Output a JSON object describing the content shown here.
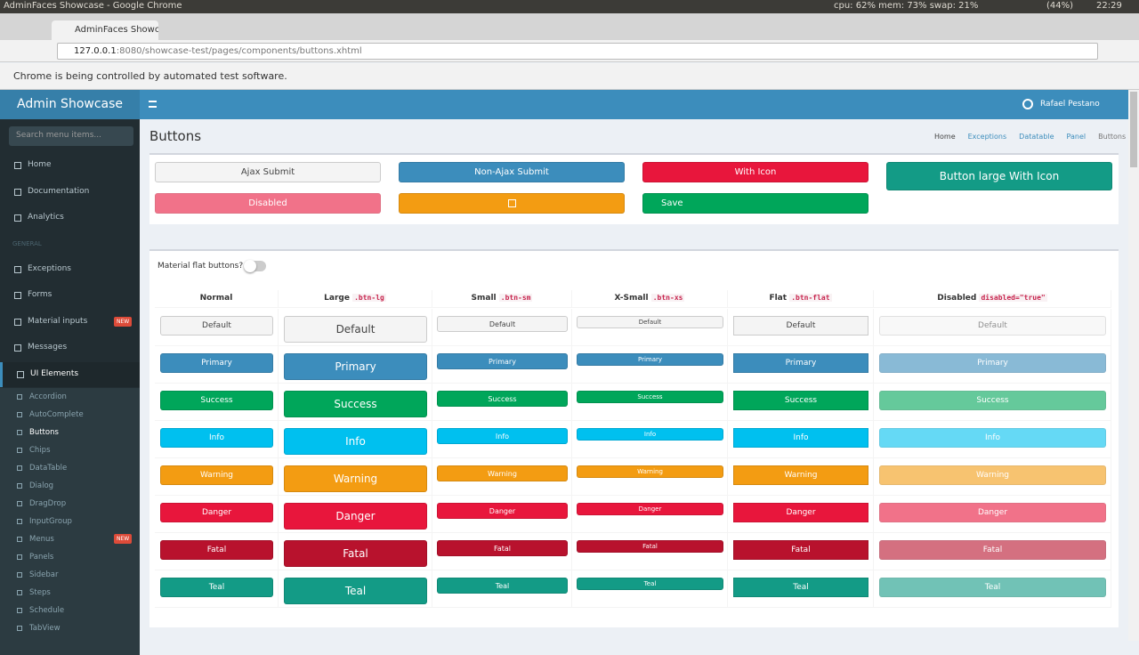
{
  "os_bar": {
    "window_title": "AdminFaces Showcase - Google Chrome",
    "status": "cpu: 62% mem: 73% swap: 21%",
    "battery": "(44%)",
    "time": "22:29"
  },
  "browser": {
    "tab": "AdminFaces Showcase",
    "url_host": "127.0.0.1",
    "url_rest": ":8080/showcase-test/pages/components/buttons.xhtml",
    "infobar": "Chrome is being controlled by automated test software."
  },
  "header": {
    "brand": "Admin Showcase",
    "user": "Rafael Pestano"
  },
  "sidebar": {
    "search_placeholder": "Search menu items...",
    "items": [
      {
        "label": "Home"
      },
      {
        "label": "Documentation"
      },
      {
        "label": "Analytics"
      },
      {
        "label": "GENERAL",
        "section": true
      },
      {
        "label": "Exceptions"
      },
      {
        "label": "Forms"
      },
      {
        "label": "Material inputs",
        "badge": "NEW"
      },
      {
        "label": "Messages"
      },
      {
        "label": "UI Elements",
        "active": true
      }
    ],
    "subitems": [
      {
        "label": "Accordion"
      },
      {
        "label": "AutoComplete"
      },
      {
        "label": "Buttons",
        "active": true
      },
      {
        "label": "Chips"
      },
      {
        "label": "DataTable"
      },
      {
        "label": "Dialog"
      },
      {
        "label": "DragDrop"
      },
      {
        "label": "InputGroup"
      },
      {
        "label": "Menus",
        "badge": "NEW"
      },
      {
        "label": "Panels"
      },
      {
        "label": "Sidebar"
      },
      {
        "label": "Steps"
      },
      {
        "label": "Schedule"
      },
      {
        "label": "TabView"
      }
    ]
  },
  "page": {
    "title": "Buttons",
    "breadcrumb": [
      "Home",
      "Exceptions",
      "Datatable",
      "Panel",
      "Buttons"
    ]
  },
  "top_buttons": {
    "ajax": "Ajax Submit",
    "non_ajax": "Non-Ajax Submit",
    "with_icon": "With Icon",
    "large": "Button large With Icon",
    "disabled": "Disabled",
    "save": "Save"
  },
  "toggle_label": "Material flat buttons?",
  "table": {
    "columns": [
      {
        "label": "Normal"
      },
      {
        "label": "Large",
        "code": ".btn-lg"
      },
      {
        "label": "Small",
        "code": ".btn-sm"
      },
      {
        "label": "X-Small",
        "code": ".btn-xs"
      },
      {
        "label": "Flat",
        "code": ".btn-flat"
      },
      {
        "label": "Disabled",
        "code": "disabled=\"true\""
      }
    ],
    "rows": [
      "Default",
      "Primary",
      "Success",
      "Info",
      "Warning",
      "Danger",
      "Fatal",
      "Teal"
    ]
  }
}
